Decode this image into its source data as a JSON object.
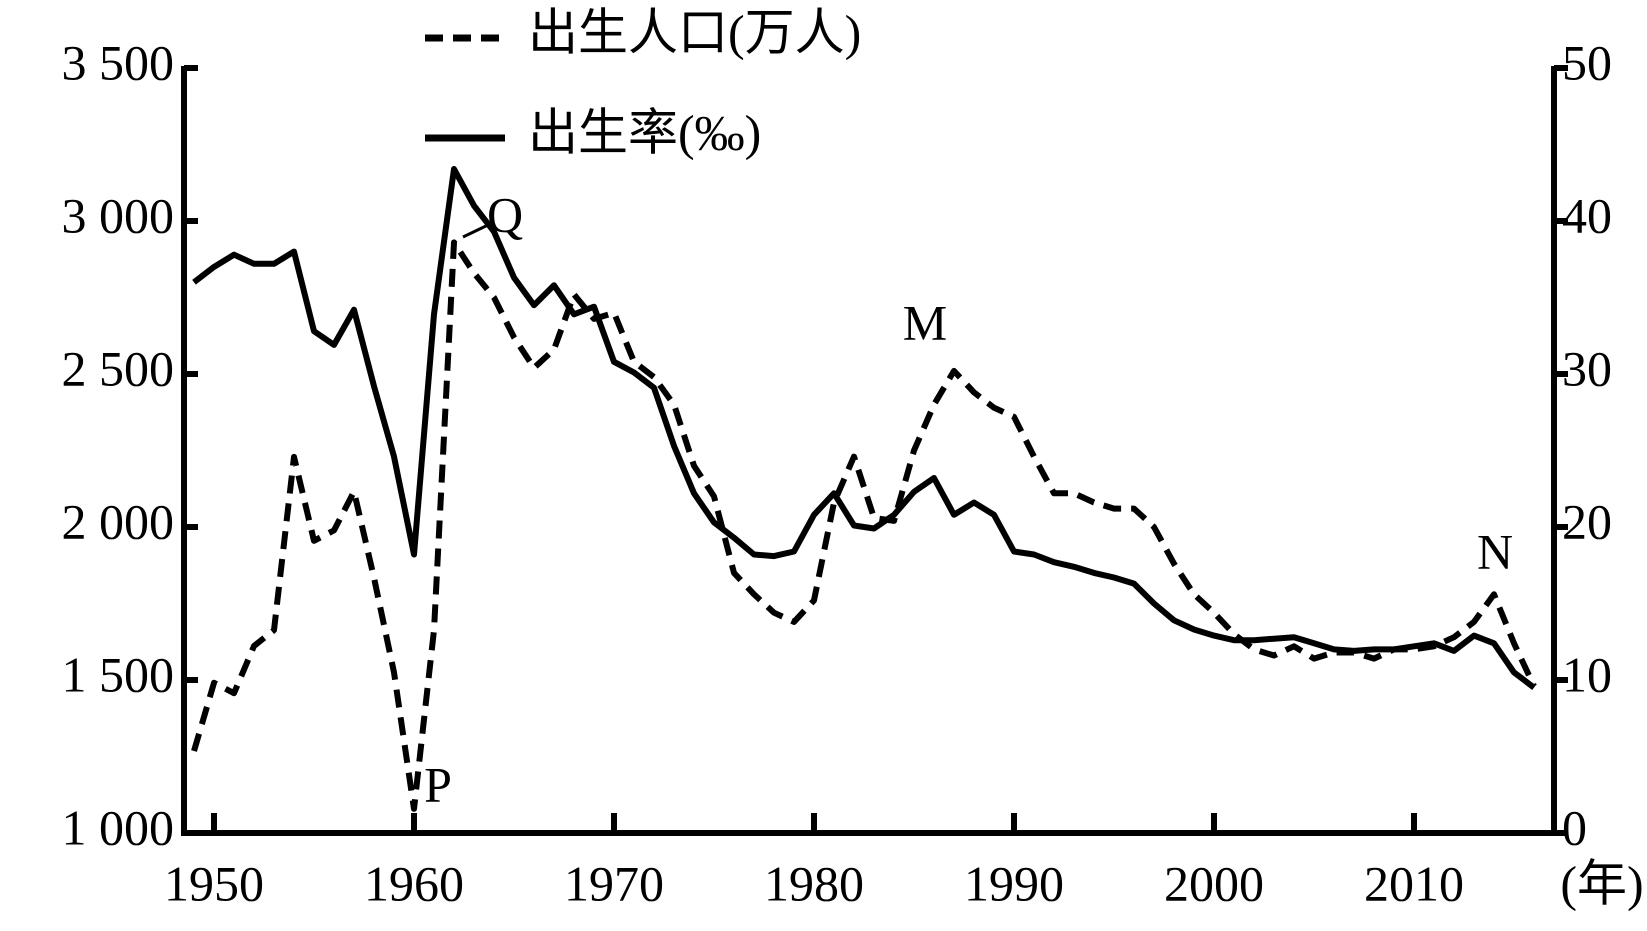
{
  "chart_data": {
    "type": "line",
    "x": [
      1949,
      1950,
      1951,
      1952,
      1953,
      1954,
      1955,
      1956,
      1957,
      1958,
      1959,
      1960,
      1961,
      1962,
      1963,
      1964,
      1965,
      1966,
      1967,
      1968,
      1969,
      1970,
      1971,
      1972,
      1973,
      1974,
      1975,
      1976,
      1977,
      1978,
      1979,
      1980,
      1981,
      1982,
      1983,
      1984,
      1985,
      1986,
      1987,
      1988,
      1989,
      1990,
      1991,
      1992,
      1993,
      1994,
      1995,
      1996,
      1997,
      1998,
      1999,
      2000,
      2001,
      2002,
      2003,
      2004,
      2005,
      2006,
      2007,
      2008,
      2009,
      2010,
      2011,
      2012,
      2013,
      2014,
      2015,
      2016
    ],
    "series": [
      {
        "name": "出生人口(万人)",
        "color": "#000000",
        "dashed": true,
        "values": [
          1268,
          1491,
          1457,
          1611,
          1663,
          2229,
          1955,
          1989,
          2116,
          1834,
          1525,
          1079,
          1663,
          2930,
          2830,
          2750,
          2620,
          2520,
          2580,
          2760,
          2680,
          2700,
          2540,
          2490,
          2400,
          2200,
          2100,
          1850,
          1780,
          1720,
          1690,
          1760,
          2080,
          2230,
          2030,
          2020,
          2250,
          2400,
          2510,
          2440,
          2390,
          2360,
          2230,
          2110,
          2110,
          2080,
          2060,
          2060,
          2000,
          1880,
          1780,
          1720,
          1650,
          1600,
          1580,
          1610,
          1570,
          1590,
          1590,
          1570,
          1600,
          1600,
          1610,
          1640,
          1690,
          1780,
          1620,
          1480
        ]
      },
      {
        "name": "出生率(‰)",
        "color": "#000000",
        "dashed": false,
        "axis": "y2",
        "values": [
          36,
          37,
          37.8,
          37.2,
          37.2,
          38,
          32.8,
          31.9,
          34.2,
          29.2,
          24.6,
          18.2,
          33.9,
          43.4,
          41,
          39.3,
          36.3,
          34.5,
          35.8,
          33.9,
          34.4,
          30.8,
          30.1,
          29.1,
          25.3,
          22.2,
          20.3,
          19.3,
          18.2,
          18.1,
          18.4,
          20.8,
          22.2,
          20.1,
          19.9,
          20.8,
          22.3,
          23.2,
          20.8,
          21.6,
          20.8,
          18.4,
          18.2,
          17.7,
          17.4,
          17,
          16.7,
          16.3,
          15,
          13.9,
          13.3,
          12.9,
          12.6,
          12.6,
          12.7,
          12.8,
          12.4,
          12,
          11.9,
          12,
          12,
          12.2,
          12.4,
          11.9,
          12.9,
          12.4,
          10.5,
          9.5
        ]
      }
    ],
    "x_label": "(年)",
    "xlim": [
      1948.5,
      2017
    ],
    "xticks": [
      1950,
      1960,
      1970,
      1980,
      1990,
      2000,
      2010
    ],
    "ylim": [
      1000,
      3500
    ],
    "yticks": [
      {
        "value": 1000,
        "label": "1 000"
      },
      {
        "value": 1500,
        "label": "1 500"
      },
      {
        "value": 2000,
        "label": "2 000"
      },
      {
        "value": 2500,
        "label": "2 500"
      },
      {
        "value": 3000,
        "label": "3 000"
      },
      {
        "value": 3500,
        "label": "3 500"
      }
    ],
    "y2lim": [
      0,
      50
    ],
    "y2ticks": [
      0,
      10,
      20,
      30,
      40,
      50
    ],
    "annotations": [
      "P",
      "Q",
      "M",
      "N"
    ],
    "legend": "top-left",
    "grid": false
  }
}
